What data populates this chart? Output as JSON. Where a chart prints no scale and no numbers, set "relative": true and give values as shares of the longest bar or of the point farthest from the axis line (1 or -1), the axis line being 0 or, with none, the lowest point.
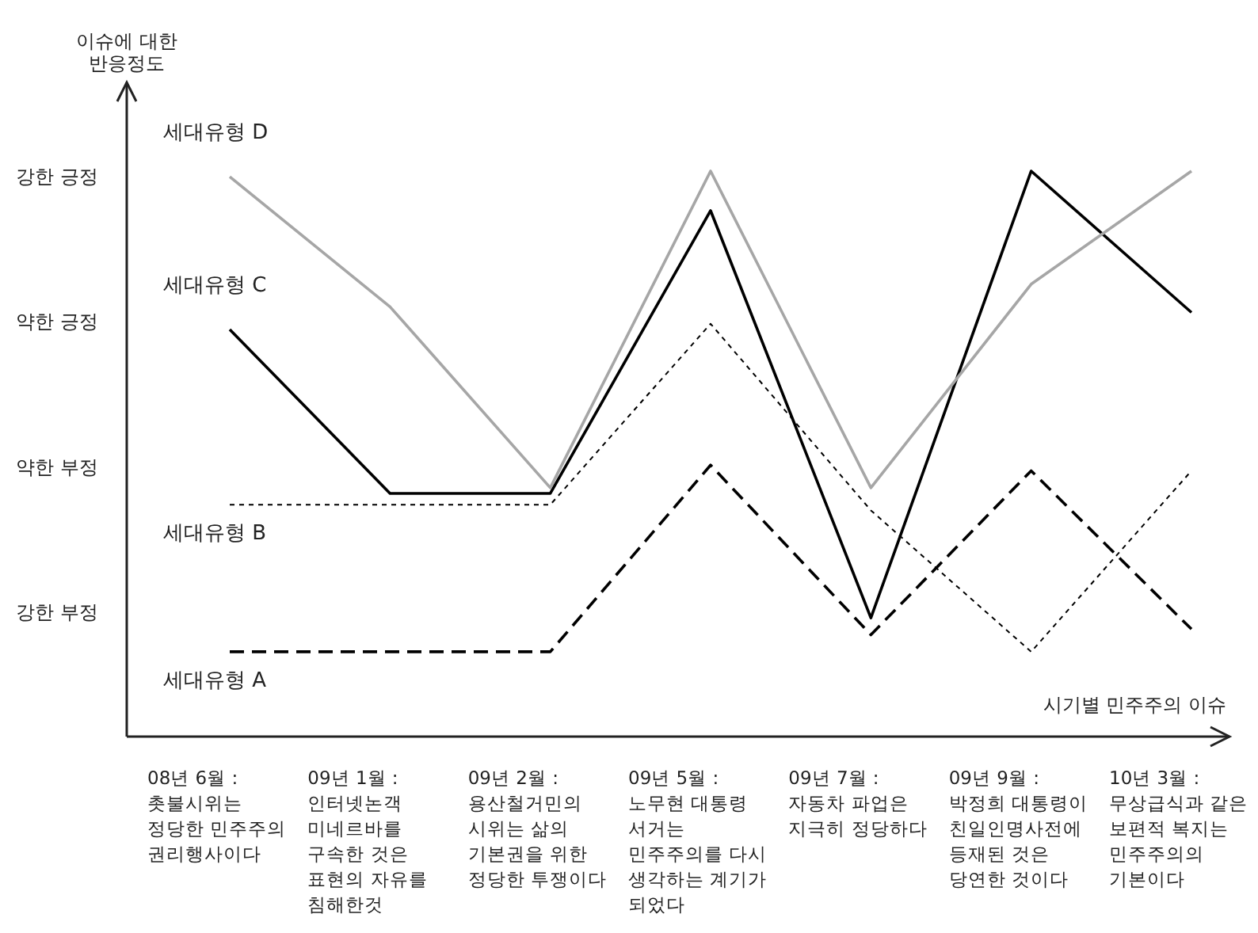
{
  "chart_data": {
    "type": "line",
    "relative": true,
    "xlabel": "시기별 민주주의 이슈",
    "categories": [
      "08년 6월 : 촛불시위는 정당한 민주주의 권리행사이다",
      "09년 1월 : 인터넷논객 미네르바를 구속한 것은 표현의 자유를 침해한것",
      "09년 2월 : 용산철거민의 시위는 삶의 기본권을 위한 정당한 투쟁이다",
      "09년 5월 : 노무현 대통령 서거는 민주주의를 다시 생각하는 계기가 되었다",
      "09년 7월 : 자동차 파업은 지극히 정당하다",
      "09년 9월 : 박정희 대통령이 친일인명사전에 등재된 것은 당연한 것이다",
      "10년 3월 : 무상급식과 같은 보편적 복지는 민주주의의 기본이다"
    ],
    "annotations": [
      "이슈에 대한 반응정도",
      "강한 부정",
      "약한 부정",
      "약한 긍정",
      "강한 긍정"
    ],
    "legend": false,
    "marker": "none",
    "series": [
      {
        "name": "세대유형 A",
        "color": "#000000",
        "line_style": "dashed",
        "values": [
          0.15,
          0.15,
          0.15,
          0.48,
          0.18,
          0.47,
          0.19
        ]
      },
      {
        "name": "세대유형 B",
        "color": "#000000",
        "line_style": "dotted",
        "values": [
          0.41,
          0.41,
          0.41,
          0.73,
          0.4,
          0.15,
          0.47
        ]
      },
      {
        "name": "세대유형 C",
        "color": "#000000",
        "line_style": "solid",
        "values": [
          0.72,
          0.43,
          0.43,
          0.93,
          0.21,
          1.0,
          0.75
        ]
      },
      {
        "name": "세대유형 D",
        "color": "#a6a6a6",
        "line_style": "solid",
        "values": [
          0.99,
          0.76,
          0.44,
          1.0,
          0.44,
          0.8,
          1.0
        ]
      }
    ]
  }
}
